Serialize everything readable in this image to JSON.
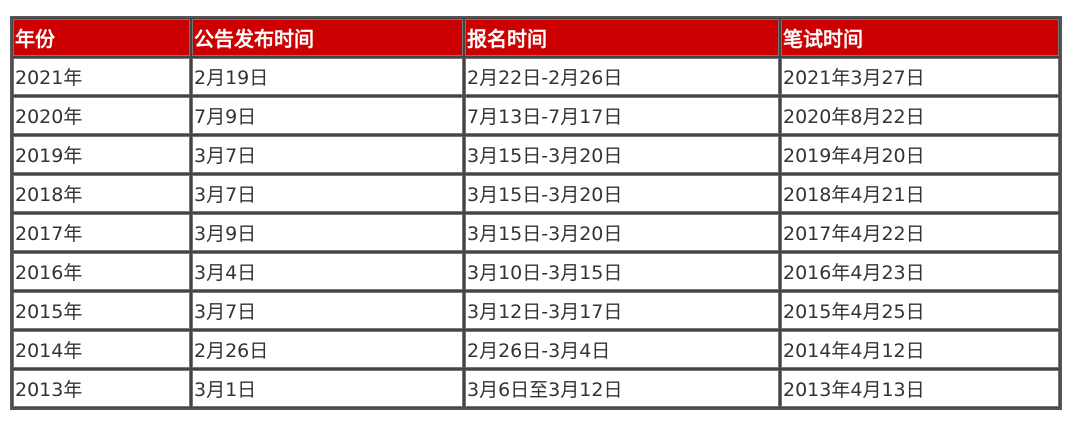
{
  "table": {
    "header_color": "#cc0000",
    "headers": [
      "年份",
      "公告发布时间",
      "报名时间",
      "笔试时间"
    ],
    "rows": [
      [
        "2021年",
        "2月19日",
        "2月22日-2月26日",
        "2021年3月27日"
      ],
      [
        "2020年",
        "7月9日",
        "7月13日-7月17日",
        "2020年8月22日"
      ],
      [
        "2019年",
        "3月7日",
        "3月15日-3月20日",
        "2019年4月20日"
      ],
      [
        "2018年",
        "3月7日",
        "3月15日-3月20日",
        "2018年4月21日"
      ],
      [
        "2017年",
        "3月9日",
        "3月15日-3月20日",
        "2017年4月22日"
      ],
      [
        "2016年",
        "3月4日",
        "3月10日-3月15日",
        "2016年4月23日"
      ],
      [
        "2015年",
        "3月7日",
        "3月12日-3月17日",
        "2015年4月25日"
      ],
      [
        "2014年",
        "2月26日",
        "2月26日-3月4日",
        "2014年4月12日"
      ],
      [
        "2013年",
        "3月1日",
        "3月6日至3月12日",
        "2013年4月13日"
      ]
    ]
  }
}
